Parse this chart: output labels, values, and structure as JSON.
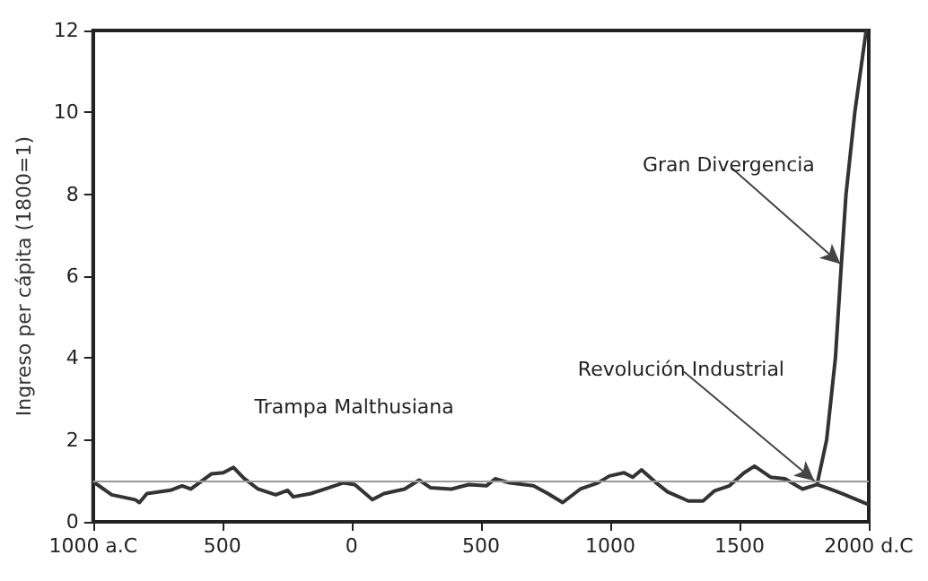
{
  "chart_data": {
    "type": "line",
    "ylabel": "Ingreso per cápita (1800=1)",
    "xlim": [
      -1000,
      2000
    ],
    "xticks": [
      {
        "value": -1000,
        "label": "1000 a.C"
      },
      {
        "value": -500,
        "label": "500"
      },
      0,
      500,
      1000,
      1500,
      {
        "value": 2000,
        "label": "2000 d.C"
      }
    ],
    "ylim": [
      0,
      12
    ],
    "yticks": [
      0,
      2,
      4,
      6,
      8,
      10,
      12
    ],
    "grid": false,
    "marker": "none",
    "line_style": "solid",
    "series": [
      {
        "color": "#333333",
        "x": [
          -1000,
          -928,
          -837,
          -821,
          -792,
          -701,
          -656,
          -622,
          -543,
          -497,
          -457,
          -418,
          -362,
          -294,
          -248,
          -226,
          -158,
          -90,
          -33,
          12,
          80,
          125,
          204,
          261,
          306,
          385,
          453,
          521,
          555,
          612,
          703,
          759,
          816,
          884,
          952,
          997,
          1053,
          1087,
          1121,
          1178,
          1222,
          1302,
          1359,
          1404,
          1461,
          1518,
          1558,
          1620,
          1676,
          1744,
          1800
        ],
        "values": [
          0.98,
          0.66,
          0.54,
          0.47,
          0.69,
          0.77,
          0.88,
          0.8,
          1.17,
          1.2,
          1.33,
          1.07,
          0.8,
          0.66,
          0.77,
          0.61,
          0.69,
          0.83,
          0.95,
          0.91,
          0.54,
          0.69,
          0.8,
          1.02,
          0.83,
          0.8,
          0.91,
          0.88,
          1.05,
          0.95,
          0.88,
          0.69,
          0.47,
          0.8,
          0.95,
          1.12,
          1.2,
          1.09,
          1.27,
          0.95,
          0.73,
          0.51,
          0.51,
          0.76,
          0.88,
          1.2,
          1.36,
          1.09,
          1.05,
          0.8,
          0.91
        ]
      },
      {
        "color": "#333333",
        "x": [
          1800,
          1850,
          1900,
          1950,
          2000
        ],
        "values": [
          0.91,
          0.8,
          0.68,
          0.55,
          0.42
        ]
      },
      {
        "color": "#333333",
        "x": [
          1800,
          1837,
          1871,
          1891,
          1912,
          1946,
          1990
        ],
        "values": [
          0.91,
          2,
          4,
          6,
          8,
          10,
          12
        ]
      }
    ],
    "ref_lines": [
      {
        "axis": "y",
        "value": 1,
        "color": "#999999"
      }
    ],
    "annotations": [
      "Trampa Malthusiana",
      {
        "text": "Revolución Industrial",
        "x": 1790,
        "y": 1
      },
      {
        "text": "Gran Divergencia",
        "x": 1890,
        "y": 6.3
      }
    ]
  }
}
